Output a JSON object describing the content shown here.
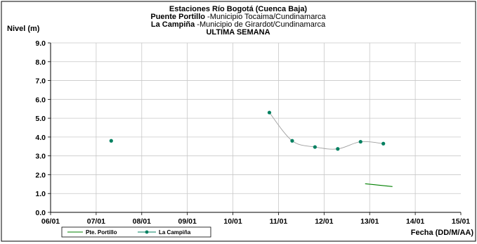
{
  "chart_data": {
    "type": "line",
    "title_lines": [
      {
        "bold": "Estaciones Río Bogotá (Cuenca Baja)",
        "rest": ""
      },
      {
        "bold": "Puente Portillo",
        "rest": " -Municipio Tocaima/Cundinamarca"
      },
      {
        "bold": "La Campiña",
        "rest": " -Municipio de Girardot/Cundinamarca"
      },
      {
        "bold": "ULTIMA SEMANA",
        "rest": ""
      }
    ],
    "ylabel": "Nivel (m)",
    "xlabel": "Fecha (DD/M/AA)",
    "ylim": [
      0,
      9
    ],
    "yticks": [
      "0.0",
      "1.0",
      "2.0",
      "3.0",
      "4.0",
      "5.0",
      "6.0",
      "7.0",
      "8.0",
      "9.0"
    ],
    "xlim": [
      6,
      15
    ],
    "xticks": [
      {
        "v": 6,
        "label": "06/01"
      },
      {
        "v": 7,
        "label": "07/01"
      },
      {
        "v": 8,
        "label": "08/01"
      },
      {
        "v": 9,
        "label": "09/01"
      },
      {
        "v": 10,
        "label": "10/01"
      },
      {
        "v": 11,
        "label": "11/01"
      },
      {
        "v": 12,
        "label": "12/01"
      },
      {
        "v": 13,
        "label": "13/01"
      },
      {
        "v": 14,
        "label": "14/01"
      },
      {
        "v": 15,
        "label": "15/01"
      }
    ],
    "grid": true,
    "legend_position": "bottom-left",
    "series": [
      {
        "name": "Pte. Portillo",
        "color": "#008000",
        "marker": "none",
        "smooth": false,
        "points": [
          {
            "x": 12.9,
            "y": 1.52
          },
          {
            "x": 13.5,
            "y": 1.37
          }
        ]
      },
      {
        "name": "La Campiña",
        "color": "#008060",
        "line_color": "#a0a0a0",
        "marker": "circle",
        "smooth": true,
        "isolated": [
          {
            "x": 7.33,
            "y": 3.8
          }
        ],
        "points": [
          {
            "x": 10.8,
            "y": 5.3
          },
          {
            "x": 11.3,
            "y": 3.8
          },
          {
            "x": 11.8,
            "y": 3.47
          },
          {
            "x": 12.3,
            "y": 3.37
          },
          {
            "x": 12.8,
            "y": 3.75
          },
          {
            "x": 13.3,
            "y": 3.65
          }
        ]
      }
    ]
  }
}
